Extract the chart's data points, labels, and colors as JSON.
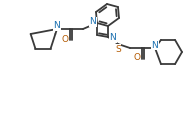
{
  "bg_color": "#ffffff",
  "line_color": "#3a3a3a",
  "atom_N_color": "#1a6faf",
  "atom_O_color": "#b35900",
  "atom_S_color": "#b35900",
  "line_width": 1.3,
  "fig_width": 1.95,
  "fig_height": 1.2,
  "dpi": 100,
  "xlim": [
    0,
    195
  ],
  "ylim": [
    0,
    120
  ]
}
